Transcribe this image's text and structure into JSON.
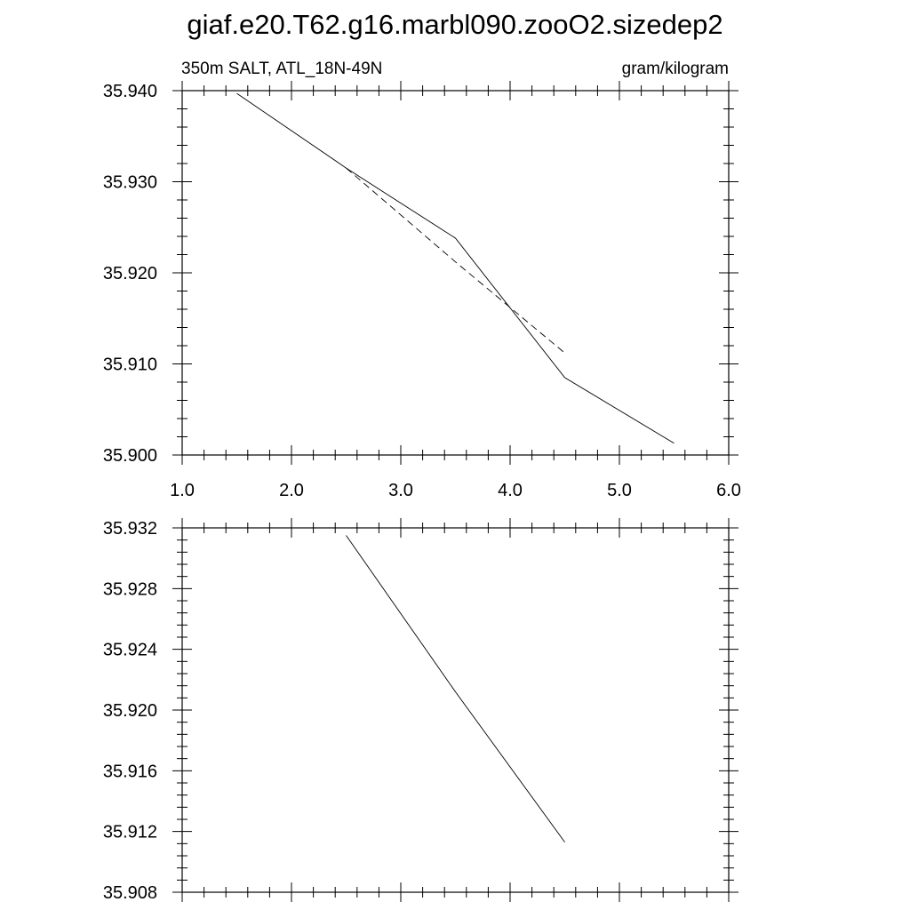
{
  "title": "giaf.e20.T62.g16.marbl090.zooO2.sizedep2",
  "chart_data": [
    {
      "type": "line",
      "left_label": "350m SALT, ATL_18N-49N",
      "right_label": "gram/kilogram",
      "xlim": [
        1.0,
        6.0
      ],
      "ylim": [
        35.9,
        35.94
      ],
      "x_ticks": [
        "1.0",
        "2.0",
        "3.0",
        "4.0",
        "5.0",
        "6.0"
      ],
      "y_ticks": [
        "35.900",
        "35.910",
        "35.920",
        "35.930",
        "35.940"
      ],
      "series": [
        {
          "style": "solid",
          "x": [
            1.5,
            2.5,
            3.5,
            4.5,
            5.5
          ],
          "y": [
            35.9397,
            35.9315,
            35.9238,
            35.9085,
            35.9013
          ]
        },
        {
          "style": "dashed",
          "x": [
            2.5,
            3.5,
            4.5
          ],
          "y": [
            35.9315,
            35.9212,
            35.9112
          ]
        }
      ]
    },
    {
      "type": "line",
      "xlim": [
        1.0,
        6.0
      ],
      "ylim": [
        35.908,
        35.932
      ],
      "y_ticks": [
        "35.908",
        "35.912",
        "35.916",
        "35.920",
        "35.924",
        "35.928",
        "35.932"
      ],
      "series": [
        {
          "style": "solid",
          "x": [
            2.5,
            3.5,
            4.5
          ],
          "y": [
            35.9315,
            35.9212,
            35.9113
          ]
        }
      ]
    }
  ]
}
